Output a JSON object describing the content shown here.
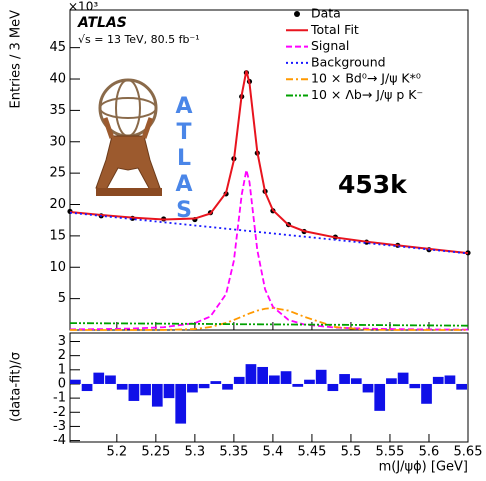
{
  "chart_data": [
    {
      "type": "line",
      "exponent_label": "×10³",
      "experiment": "ATLAS",
      "energy_label": "√s = 13 TeV, 80.5 fb⁻¹",
      "annotation": "453k",
      "logo_text": "ATLAS",
      "y_label": "Entries / 3 MeV",
      "x": [
        5.14,
        5.18,
        5.22,
        5.26,
        5.3,
        5.32,
        5.34,
        5.35,
        5.36,
        5.366,
        5.37,
        5.38,
        5.39,
        5.4,
        5.42,
        5.44,
        5.48,
        5.52,
        5.56,
        5.6,
        5.65
      ],
      "xlim": [
        5.14,
        5.65
      ],
      "xticks": [
        5.2,
        5.25,
        5.3,
        5.35,
        5.4,
        5.45,
        5.5,
        5.55,
        5.6,
        5.65
      ],
      "ylim": [
        0,
        51
      ],
      "yticks": [
        5,
        10,
        15,
        20,
        25,
        30,
        35,
        40,
        45
      ],
      "legend": "upper right",
      "series": [
        {
          "name": "Data",
          "color": "#000000",
          "style": "points",
          "values": [
            18.9,
            18.2,
            17.8,
            17.7,
            17.6,
            18.7,
            21.7,
            27.3,
            37.2,
            41.0,
            39.6,
            28.2,
            22.1,
            19.0,
            16.8,
            15.7,
            14.8,
            14.0,
            13.5,
            12.8,
            12.3
          ]
        },
        {
          "name": "Total Fit",
          "color": "#e8141e",
          "style": "solid",
          "values": [
            18.8,
            18.33,
            17.91,
            17.61,
            17.76,
            18.57,
            21.88,
            27.06,
            37.44,
            41.32,
            39.34,
            28.39,
            21.98,
            19.09,
            16.73,
            15.76,
            14.75,
            14.07,
            13.48,
            12.93,
            12.26
          ]
        },
        {
          "name": "Signal",
          "color": "#ff00ff",
          "style": "dashed",
          "values": [
            0.1,
            0.14,
            0.23,
            0.44,
            1.1,
            2.16,
            5.73,
            11.04,
            21.54,
            25.5,
            23.57,
            12.75,
            6.47,
            3.7,
            1.6,
            0.88,
            0.38,
            0.21,
            0.13,
            0.09,
            0.06
          ]
        },
        {
          "name": "Background",
          "color": "#1a1aff",
          "style": "dotted",
          "values": [
            18.7,
            18.19,
            17.68,
            17.17,
            16.66,
            16.41,
            16.15,
            16.02,
            15.9,
            15.82,
            15.77,
            15.64,
            15.51,
            15.39,
            15.13,
            14.88,
            14.37,
            13.86,
            13.35,
            12.84,
            12.2
          ]
        },
        {
          "name": "10 × Bd⁰→ J/ψ K*⁰",
          "color": "#ff9900",
          "style": "dashdot",
          "values": [
            0.0,
            0.0,
            0.0,
            0.01,
            0.15,
            0.47,
            1.14,
            1.6,
            2.12,
            2.43,
            2.64,
            3.09,
            3.39,
            3.5,
            3.09,
            2.12,
            0.47,
            0.04,
            0.0,
            0.0,
            0.0
          ]
        },
        {
          "name": "10 × Λb→ J/ψ p K⁻",
          "color": "#00a000",
          "style": "dashdotdot",
          "values": [
            1.1,
            1.07,
            1.04,
            1.01,
            0.98,
            0.96,
            0.94,
            0.93,
            0.92,
            0.92,
            0.92,
            0.91,
            0.9,
            0.89,
            0.88,
            0.86,
            0.83,
            0.8,
            0.76,
            0.73,
            0.69
          ]
        }
      ]
    },
    {
      "type": "histogram",
      "y_label": "(data-fit)/σ",
      "x_label": "m(J/ψϕ) [GeV]",
      "color": "#1010e8",
      "bins": [
        5.14,
        5.155,
        5.17,
        5.185,
        5.2,
        5.215,
        5.23,
        5.245,
        5.26,
        5.275,
        5.29,
        5.305,
        5.32,
        5.335,
        5.35,
        5.365,
        5.38,
        5.395,
        5.41,
        5.425,
        5.44,
        5.455,
        5.47,
        5.485,
        5.5,
        5.515,
        5.53,
        5.545,
        5.56,
        5.575,
        5.59,
        5.605,
        5.62,
        5.635,
        5.65
      ],
      "values": [
        0.3,
        -0.5,
        0.8,
        0.6,
        -0.4,
        -1.2,
        -0.8,
        -1.6,
        -1.0,
        -2.8,
        -0.6,
        -0.3,
        0.2,
        -0.4,
        0.5,
        1.4,
        1.2,
        0.6,
        0.9,
        -0.2,
        0.3,
        1.0,
        -0.5,
        0.7,
        0.4,
        -0.6,
        -1.9,
        0.4,
        0.8,
        -0.3,
        -1.4,
        0.5,
        0.6,
        -0.4
      ],
      "xlim": [
        5.14,
        5.65
      ],
      "xticks": [
        5.2,
        5.25,
        5.3,
        5.35,
        5.4,
        5.45,
        5.5,
        5.55,
        5.6,
        5.65
      ],
      "ylim": [
        -4.1,
        3.6
      ],
      "yticks": [
        -4,
        -3,
        -2,
        -1,
        0,
        1,
        2,
        3
      ]
    }
  ]
}
